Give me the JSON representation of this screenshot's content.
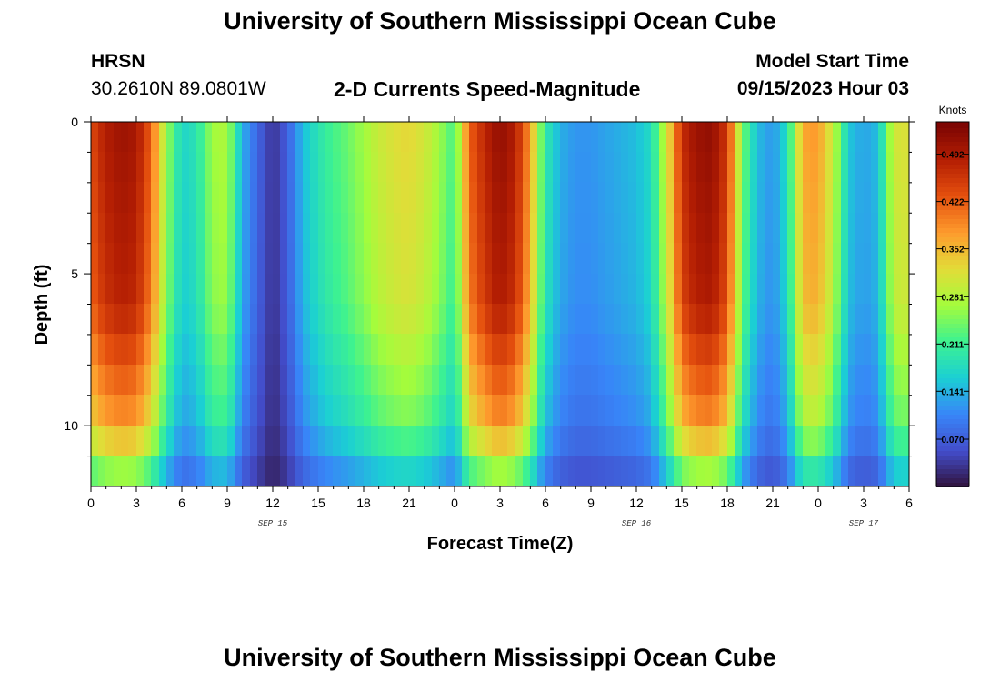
{
  "page": {
    "title": "University of Southern Mississippi Ocean Cube",
    "station_code": "HRSN",
    "coords": "30.2610N  89.0801W",
    "subtitle": "2-D Currents Speed-Magnitude",
    "model_start_label": "Model Start Time",
    "model_start_value": "09/15/2023 Hour 03",
    "footer_title": "University of Southern Mississippi Ocean Cube"
  },
  "chart_data": {
    "type": "heatmap",
    "title": "2-D Currents Speed-Magnitude",
    "xlabel": "Forecast Time(Z)",
    "ylabel": "Depth (ft)",
    "xlim": [
      0,
      54
    ],
    "ylim": [
      0,
      12
    ],
    "y_inverted": true,
    "x_ticks": [
      0,
      3,
      6,
      9,
      12,
      15,
      18,
      21,
      24,
      27,
      30,
      33,
      36,
      39,
      42,
      45,
      48,
      51,
      54
    ],
    "x_tick_labels": [
      "0",
      "3",
      "6",
      "9",
      "12",
      "15",
      "18",
      "21",
      "0",
      "3",
      "6",
      "9",
      "12",
      "15",
      "18",
      "21",
      "0",
      "3",
      "6"
    ],
    "y_ticks": [
      0,
      5,
      10
    ],
    "y_tick_labels": [
      "0",
      "5",
      "10"
    ],
    "date_labels": [
      {
        "x": 12,
        "text": "SEP 15"
      },
      {
        "x": 36,
        "text": "SEP 16"
      },
      {
        "x": 51,
        "text": "SEP 17"
      }
    ],
    "colorbar": {
      "label": "Knots",
      "min": 0.0,
      "max": 0.54,
      "ticks": [
        0.07,
        0.141,
        0.211,
        0.281,
        0.352,
        0.422,
        0.492
      ],
      "tick_labels": [
        "0.070",
        "0.141",
        "0.211",
        "0.281",
        "0.352",
        "0.422",
        "0.492"
      ]
    },
    "grid": false,
    "surface_profile_knots": {
      "x_hours": [
        0,
        1,
        2,
        3,
        4,
        5,
        6,
        7,
        8,
        9,
        10,
        11,
        12,
        13,
        14,
        15,
        16,
        17,
        18,
        19,
        20,
        21,
        22,
        23,
        24,
        25,
        26,
        27,
        28,
        29,
        30,
        31,
        32,
        33,
        34,
        35,
        36,
        37,
        38,
        39,
        40,
        41,
        42,
        43,
        44,
        45,
        46,
        47,
        48,
        49,
        50,
        51,
        52,
        53,
        54
      ],
      "values": [
        0.44,
        0.49,
        0.51,
        0.5,
        0.42,
        0.27,
        0.17,
        0.19,
        0.27,
        0.28,
        0.14,
        0.08,
        0.03,
        0.07,
        0.15,
        0.19,
        0.22,
        0.24,
        0.27,
        0.3,
        0.32,
        0.33,
        0.31,
        0.27,
        0.22,
        0.42,
        0.48,
        0.52,
        0.49,
        0.38,
        0.2,
        0.14,
        0.12,
        0.12,
        0.13,
        0.14,
        0.15,
        0.18,
        0.3,
        0.47,
        0.51,
        0.52,
        0.46,
        0.25,
        0.15,
        0.12,
        0.18,
        0.37,
        0.38,
        0.3,
        0.16,
        0.13,
        0.15,
        0.31,
        0.32
      ]
    },
    "depth_scale_factor": {
      "depth_ft": [
        0,
        6,
        10,
        12
      ],
      "factor": [
        1.0,
        0.95,
        0.75,
        0.45
      ]
    }
  }
}
